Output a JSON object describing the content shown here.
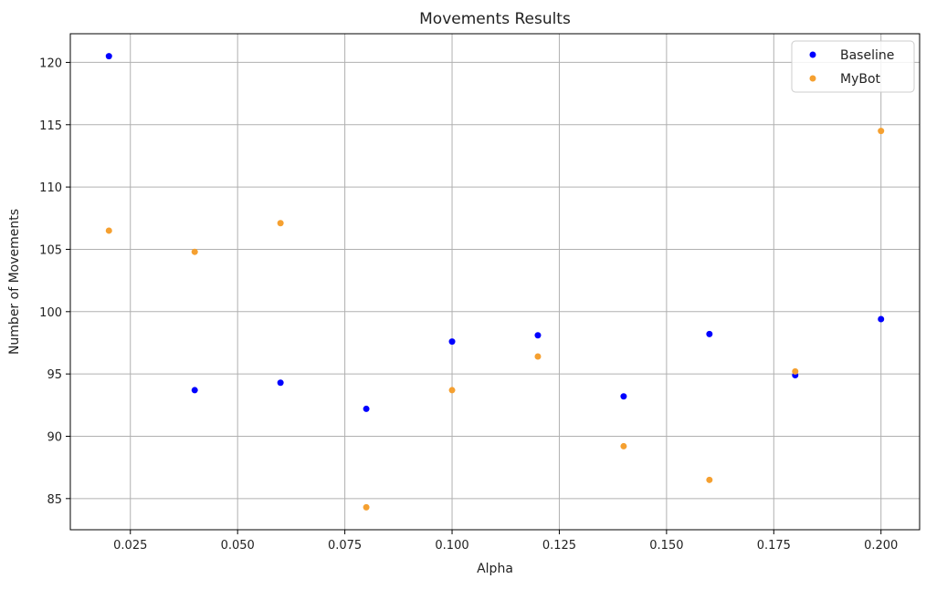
{
  "chart_data": {
    "type": "scatter",
    "title": "Movements Results",
    "xlabel": "Alpha",
    "ylabel": "Number of Movements",
    "xlim": [
      0.011,
      0.209
    ],
    "ylim": [
      82.5,
      122.3
    ],
    "xticks": [
      0.025,
      0.05,
      0.075,
      0.1,
      0.125,
      0.15,
      0.175,
      0.2
    ],
    "xtick_labels": [
      "0.025",
      "0.050",
      "0.075",
      "0.100",
      "0.125",
      "0.150",
      "0.175",
      "0.200"
    ],
    "yticks": [
      85,
      90,
      95,
      100,
      105,
      110,
      115,
      120
    ],
    "ytick_labels": [
      "85",
      "90",
      "95",
      "100",
      "105",
      "110",
      "115",
      "120"
    ],
    "grid": true,
    "legend_position": "top-right",
    "series": [
      {
        "name": "Baseline",
        "color": "#0000ff",
        "x": [
          0.02,
          0.04,
          0.06,
          0.08,
          0.1,
          0.12,
          0.14,
          0.16,
          0.18,
          0.2
        ],
        "y": [
          120.5,
          93.7,
          94.3,
          92.2,
          97.6,
          98.1,
          93.2,
          98.2,
          94.9,
          99.4
        ]
      },
      {
        "name": "MyBot",
        "color": "#f5a030",
        "x": [
          0.02,
          0.04,
          0.06,
          0.08,
          0.1,
          0.12,
          0.14,
          0.16,
          0.18,
          0.2
        ],
        "y": [
          106.5,
          104.8,
          107.1,
          84.3,
          93.7,
          96.4,
          89.2,
          86.5,
          95.2,
          114.5
        ]
      }
    ]
  }
}
